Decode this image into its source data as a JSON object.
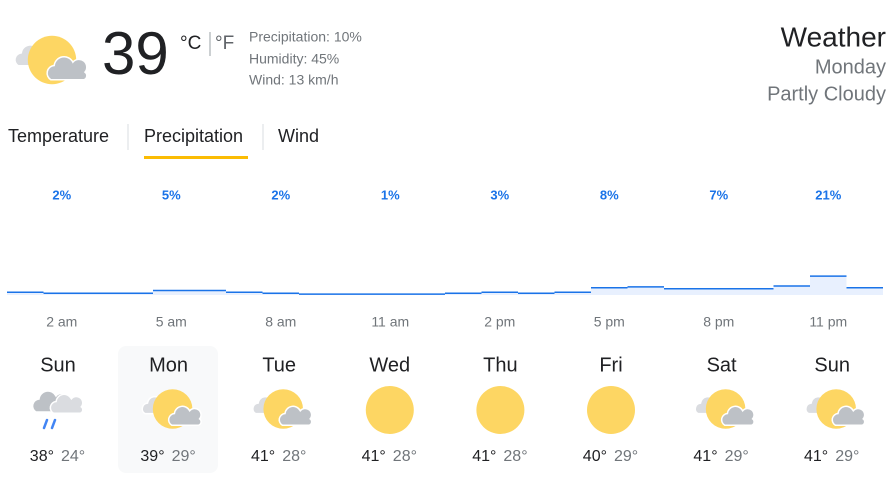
{
  "current": {
    "temperature": "39",
    "unit_c": "°C",
    "unit_f": "°F",
    "precipitation": "Precipitation: 10%",
    "humidity": "Humidity: 45%",
    "wind": "Wind: 13 km/h"
  },
  "header": {
    "title": "Weather",
    "day": "Monday",
    "condition": "Partly Cloudy"
  },
  "tabs": [
    "Temperature",
    "Precipitation",
    "Wind"
  ],
  "chart_data": {
    "type": "step",
    "categories": [
      null,
      "2 am",
      null,
      null,
      "5 am",
      null,
      null,
      "8 am",
      null,
      null,
      "11 am",
      null,
      null,
      "2 pm",
      null,
      null,
      "5 pm",
      null,
      null,
      "8 pm",
      null,
      null,
      "11 pm",
      null
    ],
    "values": [
      3,
      2,
      2,
      2,
      5,
      5,
      3,
      2,
      1,
      1,
      1,
      1,
      2,
      3,
      2,
      3,
      8,
      9,
      7,
      7,
      7,
      10,
      21,
      8
    ],
    "value_labels": [
      null,
      "2%",
      null,
      null,
      "5%",
      null,
      null,
      "2%",
      null,
      null,
      "1%",
      null,
      null,
      "3%",
      null,
      null,
      "8%",
      null,
      null,
      "7%",
      null,
      null,
      "21%",
      null
    ],
    "color": "#1a73e8"
  },
  "forecast": [
    {
      "day": "Sun",
      "high": "38°",
      "low": "24°"
    },
    {
      "day": "Mon",
      "high": "39°",
      "low": "29°"
    },
    {
      "day": "Tue",
      "high": "41°",
      "low": "28°"
    },
    {
      "day": "Wed",
      "high": "41°",
      "low": "28°"
    },
    {
      "day": "Thu",
      "high": "41°",
      "low": "28°"
    },
    {
      "day": "Fri",
      "high": "40°",
      "low": "29°"
    },
    {
      "day": "Sat",
      "high": "41°",
      "low": "29°"
    },
    {
      "day": "Sun",
      "high": "41°",
      "low": "29°"
    }
  ]
}
